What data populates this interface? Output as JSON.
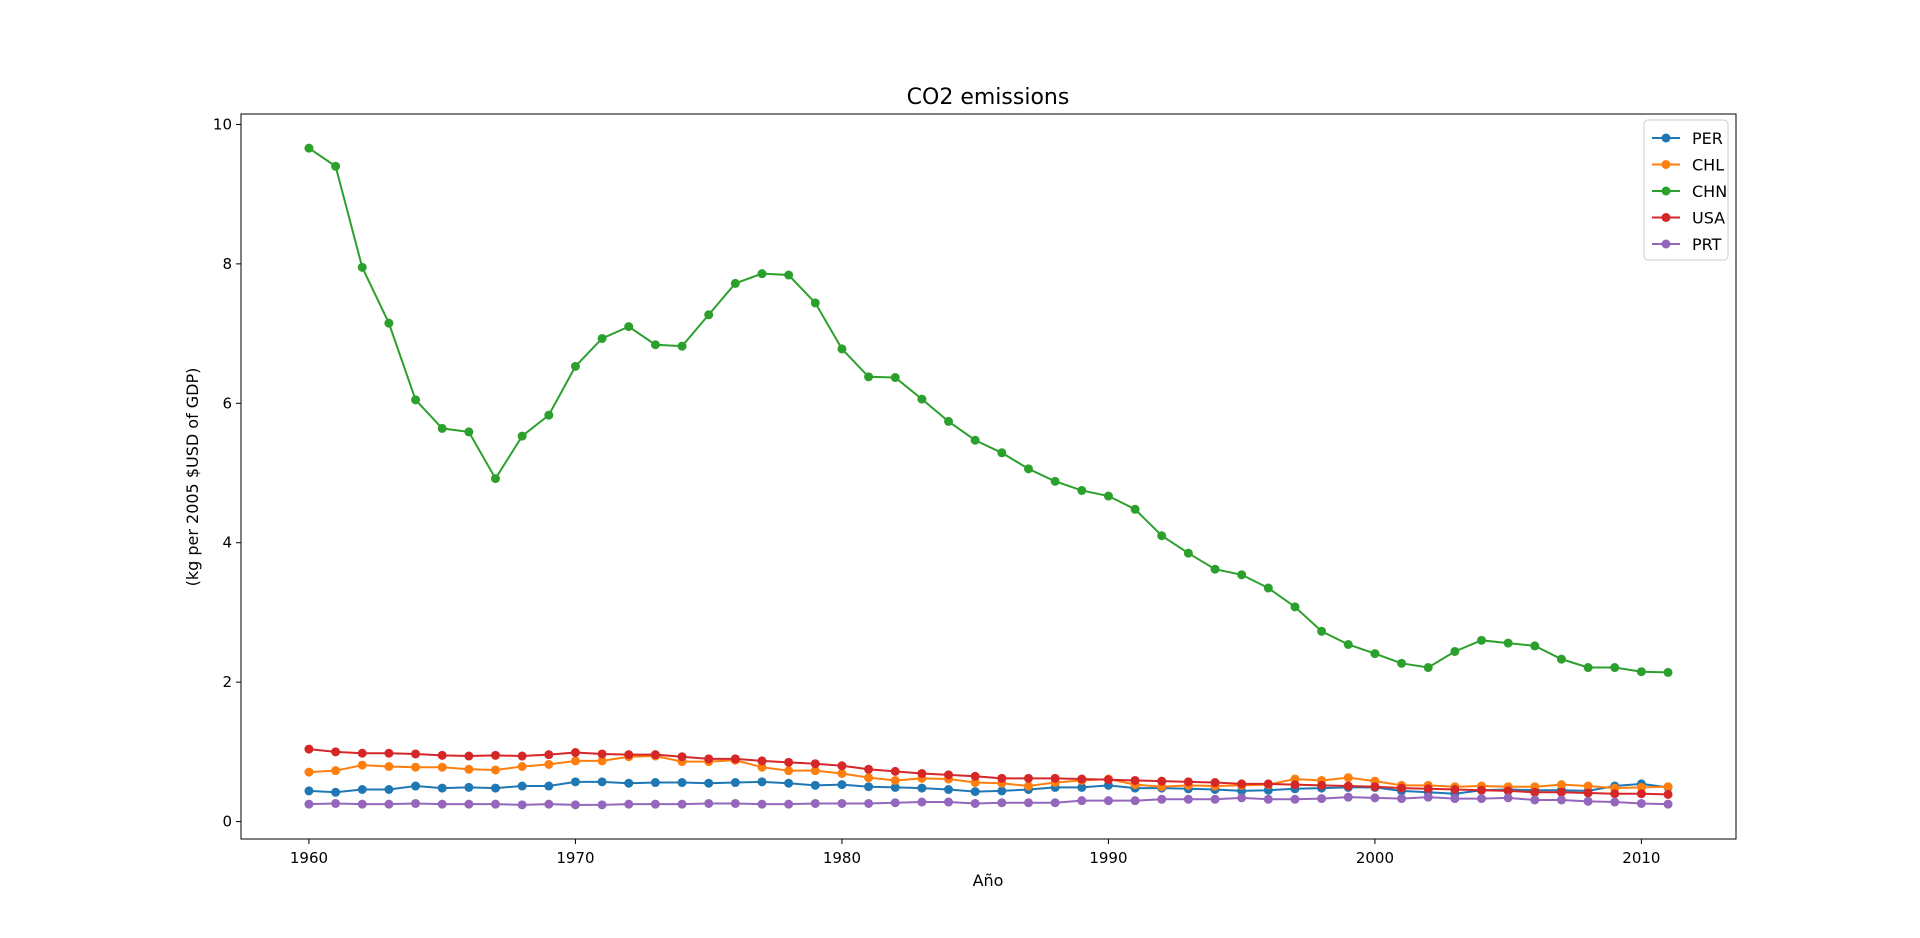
{
  "chart_data": {
    "type": "line",
    "title": "CO2 emissions",
    "xlabel": "Año",
    "ylabel": "(kg per 2005 $USD of GDP)",
    "xlim": [
      1957.45,
      2013.55
    ],
    "ylim": [
      -0.25,
      10.15
    ],
    "xticks": [
      1960,
      1970,
      1980,
      1990,
      2000,
      2010
    ],
    "yticks": [
      0,
      2,
      4,
      6,
      8,
      10
    ],
    "grid": false,
    "legend_position": "top-right",
    "x": [
      1960,
      1961,
      1962,
      1963,
      1964,
      1965,
      1966,
      1967,
      1968,
      1969,
      1970,
      1971,
      1972,
      1973,
      1974,
      1975,
      1976,
      1977,
      1978,
      1979,
      1980,
      1981,
      1982,
      1983,
      1984,
      1985,
      1986,
      1987,
      1988,
      1989,
      1990,
      1991,
      1992,
      1993,
      1994,
      1995,
      1996,
      1997,
      1998,
      1999,
      2000,
      2001,
      2002,
      2003,
      2004,
      2005,
      2006,
      2007,
      2008,
      2009,
      2010,
      2011
    ],
    "series": [
      {
        "name": "PER",
        "color": "#1f77b4",
        "values": [
          0.44,
          0.42,
          0.46,
          0.46,
          0.51,
          0.48,
          0.49,
          0.48,
          0.51,
          0.51,
          0.57,
          0.57,
          0.55,
          0.56,
          0.56,
          0.55,
          0.56,
          0.57,
          0.55,
          0.52,
          0.53,
          0.5,
          0.49,
          0.48,
          0.46,
          0.43,
          0.44,
          0.46,
          0.49,
          0.49,
          0.52,
          0.48,
          0.48,
          0.47,
          0.46,
          0.44,
          0.45,
          0.47,
          0.48,
          0.49,
          0.49,
          0.44,
          0.42,
          0.4,
          0.45,
          0.46,
          0.45,
          0.45,
          0.44,
          0.51,
          0.54,
          0.49
        ]
      },
      {
        "name": "CHL",
        "color": "#ff7f0e",
        "values": [
          0.71,
          0.73,
          0.81,
          0.79,
          0.78,
          0.78,
          0.75,
          0.74,
          0.79,
          0.82,
          0.87,
          0.87,
          0.93,
          0.94,
          0.86,
          0.86,
          0.88,
          0.78,
          0.73,
          0.73,
          0.69,
          0.63,
          0.59,
          0.62,
          0.61,
          0.56,
          0.55,
          0.51,
          0.56,
          0.59,
          0.61,
          0.53,
          0.5,
          0.52,
          0.51,
          0.52,
          0.53,
          0.61,
          0.59,
          0.63,
          0.58,
          0.52,
          0.52,
          0.5,
          0.51,
          0.5,
          0.5,
          0.53,
          0.51,
          0.48,
          0.49,
          0.5
        ]
      },
      {
        "name": "CHN",
        "color": "#2ca02c",
        "values": [
          9.66,
          9.4,
          7.95,
          7.15,
          6.05,
          5.64,
          5.59,
          4.92,
          5.53,
          5.83,
          6.53,
          6.93,
          7.1,
          6.84,
          6.82,
          7.27,
          7.72,
          7.86,
          7.84,
          7.44,
          6.78,
          6.38,
          6.37,
          6.06,
          5.74,
          5.47,
          5.29,
          5.06,
          4.88,
          4.75,
          4.67,
          4.48,
          4.1,
          3.85,
          3.62,
          3.54,
          3.35,
          3.08,
          2.73,
          2.54,
          2.41,
          2.27,
          2.21,
          2.44,
          2.6,
          2.56,
          2.52,
          2.33,
          2.21,
          2.21,
          2.15,
          2.14
        ]
      },
      {
        "name": "USA",
        "color": "#d62728",
        "values": [
          1.04,
          1.0,
          0.98,
          0.98,
          0.97,
          0.95,
          0.94,
          0.95,
          0.94,
          0.96,
          0.99,
          0.97,
          0.96,
          0.96,
          0.93,
          0.9,
          0.9,
          0.87,
          0.85,
          0.83,
          0.8,
          0.75,
          0.72,
          0.69,
          0.67,
          0.65,
          0.62,
          0.62,
          0.62,
          0.61,
          0.6,
          0.59,
          0.58,
          0.57,
          0.56,
          0.54,
          0.54,
          0.53,
          0.52,
          0.51,
          0.5,
          0.48,
          0.47,
          0.46,
          0.45,
          0.44,
          0.42,
          0.42,
          0.41,
          0.4,
          0.4,
          0.39
        ]
      },
      {
        "name": "PRT",
        "color": "#9467bd",
        "values": [
          0.25,
          0.26,
          0.25,
          0.25,
          0.26,
          0.25,
          0.25,
          0.25,
          0.24,
          0.25,
          0.24,
          0.24,
          0.25,
          0.25,
          0.25,
          0.26,
          0.26,
          0.25,
          0.25,
          0.26,
          0.26,
          0.26,
          0.27,
          0.28,
          0.28,
          0.26,
          0.27,
          0.27,
          0.27,
          0.3,
          0.3,
          0.3,
          0.32,
          0.32,
          0.32,
          0.34,
          0.32,
          0.32,
          0.33,
          0.35,
          0.34,
          0.33,
          0.35,
          0.33,
          0.33,
          0.34,
          0.31,
          0.31,
          0.29,
          0.28,
          0.26,
          0.25
        ]
      }
    ]
  }
}
